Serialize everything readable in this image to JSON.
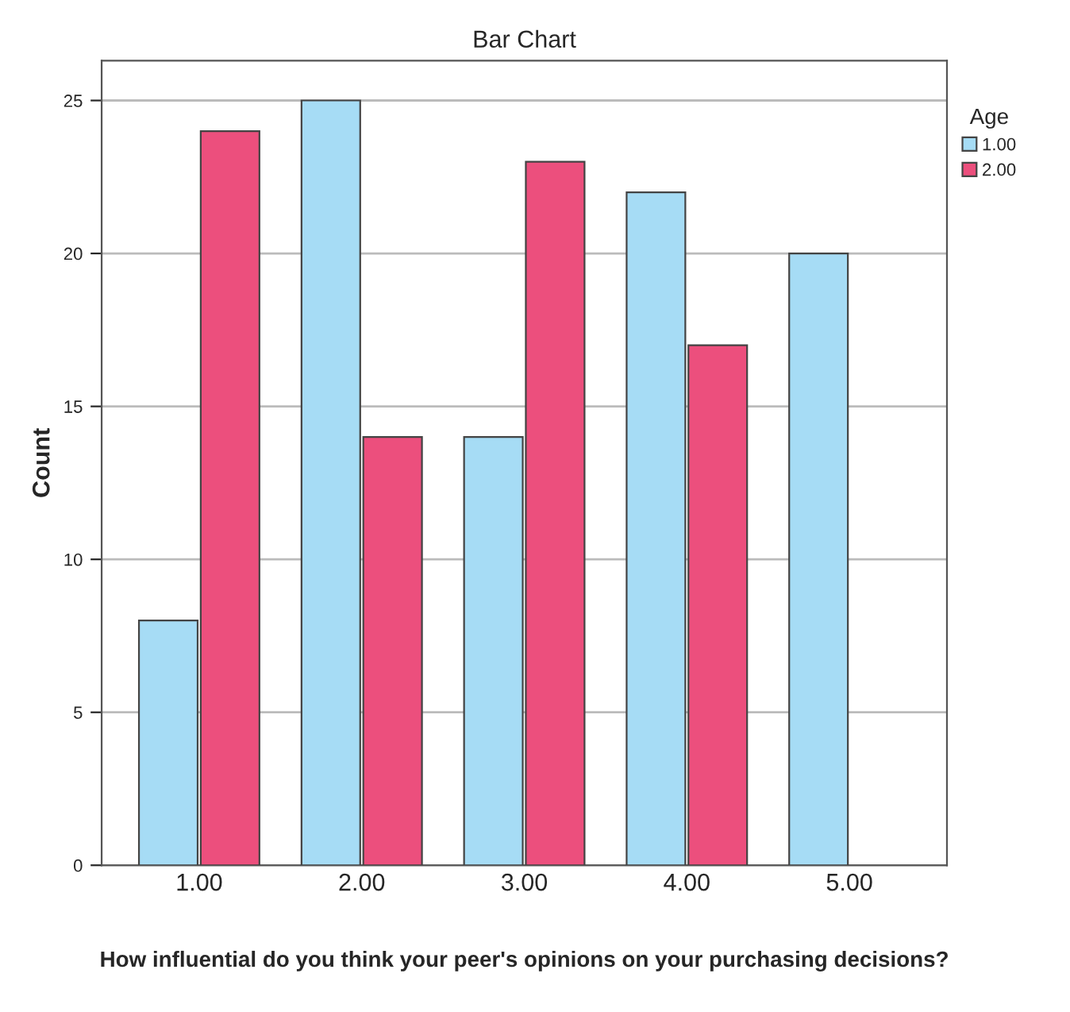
{
  "chart_data": {
    "type": "bar",
    "title": "Bar Chart",
    "xlabel": "How influential do you think your peer's opinions on your purchasing decisions?",
    "ylabel": "Count",
    "legend_title": "Age",
    "categories": [
      "1.00",
      "2.00",
      "3.00",
      "4.00",
      "5.00"
    ],
    "series": [
      {
        "name": "1.00",
        "color": "#a6dcf5",
        "values": [
          8,
          25,
          14,
          22,
          20
        ]
      },
      {
        "name": "2.00",
        "color": "#ec4f7d",
        "values": [
          24,
          14,
          23,
          17,
          null
        ]
      }
    ],
    "ylim": [
      0,
      26.3
    ],
    "yticks": [
      0,
      5,
      10,
      15,
      20,
      25
    ],
    "grid": "y",
    "legend": "right"
  }
}
